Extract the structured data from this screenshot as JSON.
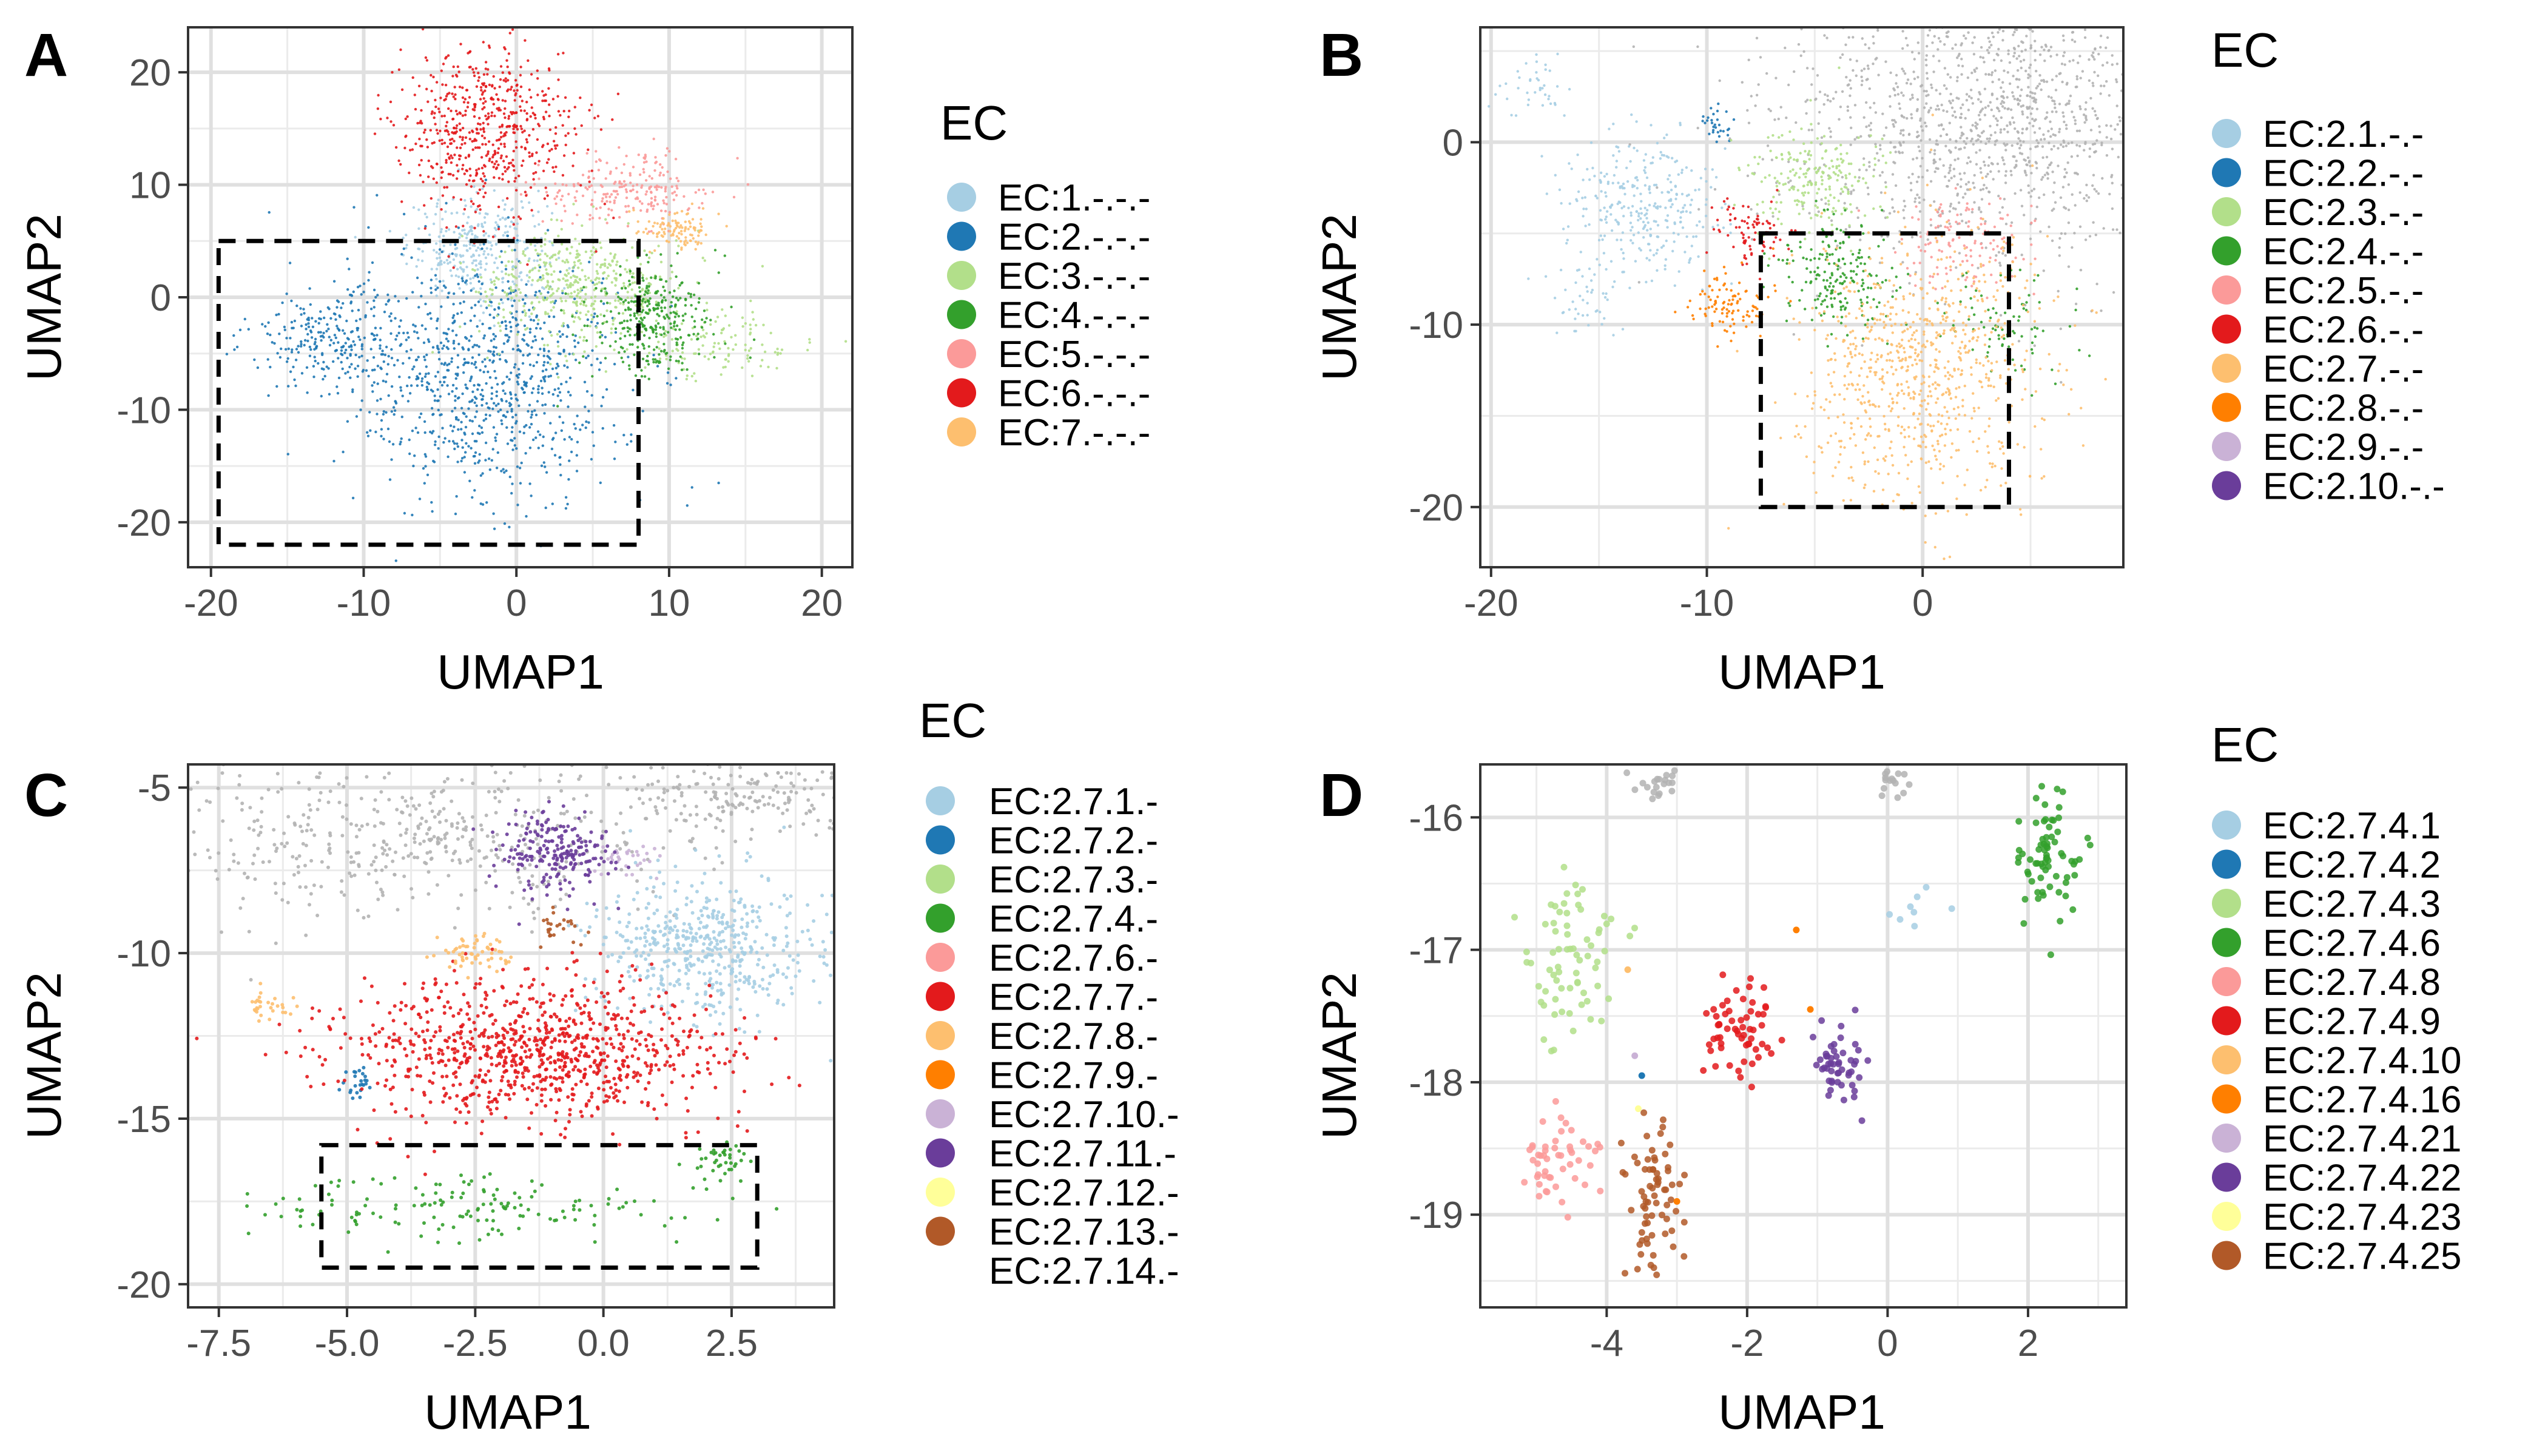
{
  "figure": {
    "panels": [
      {
        "letter": "A",
        "xlabel": "UMAP1",
        "ylabel": "UMAP2",
        "legend_title": "EC",
        "legend": [
          {
            "label": "EC:1.-.-.-",
            "color": "#a6cee3"
          },
          {
            "label": "EC:2.-.-.-",
            "color": "#1f78b4"
          },
          {
            "label": "EC:3.-.-.-",
            "color": "#b2df8a"
          },
          {
            "label": "EC:4.-.-.-",
            "color": "#33a02c"
          },
          {
            "label": "EC:5.-.-.-",
            "color": "#fb9a99"
          },
          {
            "label": "EC:6.-.-.-",
            "color": "#e31a1c"
          },
          {
            "label": "EC:7.-.-.-",
            "color": "#fdbf6f"
          }
        ]
      },
      {
        "letter": "B",
        "xlabel": "UMAP1",
        "ylabel": "UMAP2",
        "legend_title": "EC",
        "legend": [
          {
            "label": "EC:2.1.-.-",
            "color": "#a6cee3"
          },
          {
            "label": "EC:2.2.-.-",
            "color": "#1f78b4"
          },
          {
            "label": "EC:2.3.-.-",
            "color": "#b2df8a"
          },
          {
            "label": "EC:2.4.-.-",
            "color": "#33a02c"
          },
          {
            "label": "EC:2.5.-.-",
            "color": "#fb9a99"
          },
          {
            "label": "EC:2.6.-.-",
            "color": "#e31a1c"
          },
          {
            "label": "EC:2.7.-.-",
            "color": "#fdbf6f"
          },
          {
            "label": "EC:2.8.-.-",
            "color": "#ff7f00"
          },
          {
            "label": "EC:2.9.-.-",
            "color": "#cab2d6"
          },
          {
            "label": "EC:2.10.-.-",
            "color": "#6a3d9a"
          }
        ]
      },
      {
        "letter": "C",
        "xlabel": "UMAP1",
        "ylabel": "UMAP2",
        "legend_title": "EC",
        "legend": [
          {
            "label": "EC:2.7.1.-",
            "color": "#a6cee3"
          },
          {
            "label": "EC:2.7.2.-",
            "color": "#1f78b4"
          },
          {
            "label": "EC:2.7.3.-",
            "color": "#b2df8a"
          },
          {
            "label": "EC:2.7.4.-",
            "color": "#33a02c"
          },
          {
            "label": "EC:2.7.6.-",
            "color": "#fb9a99"
          },
          {
            "label": "EC:2.7.7.-",
            "color": "#e31a1c"
          },
          {
            "label": "EC:2.7.8.-",
            "color": "#fdbf6f"
          },
          {
            "label": "EC:2.7.9.-",
            "color": "#ff7f00"
          },
          {
            "label": "EC:2.7.10.-",
            "color": "#cab2d6"
          },
          {
            "label": "EC:2.7.11.-",
            "color": "#6a3d9a"
          },
          {
            "label": "EC:2.7.12.-",
            "color": "#ffff99"
          },
          {
            "label": "EC:2.7.13.-",
            "color": "#b15928"
          },
          {
            "label": "EC:2.7.14.-",
            "color": ""
          }
        ]
      },
      {
        "letter": "D",
        "xlabel": "UMAP1",
        "ylabel": "UMAP2",
        "legend_title": "EC",
        "legend": [
          {
            "label": "EC:2.7.4.1",
            "color": "#a6cee3"
          },
          {
            "label": "EC:2.7.4.2",
            "color": "#1f78b4"
          },
          {
            "label": "EC:2.7.4.3",
            "color": "#b2df8a"
          },
          {
            "label": "EC:2.7.4.6",
            "color": "#33a02c"
          },
          {
            "label": "EC:2.7.4.8",
            "color": "#fb9a99"
          },
          {
            "label": "EC:2.7.4.9",
            "color": "#e31a1c"
          },
          {
            "label": "EC:2.7.4.10",
            "color": "#fdbf6f"
          },
          {
            "label": "EC:2.7.4.16",
            "color": "#ff7f00"
          },
          {
            "label": "EC:2.7.4.21",
            "color": "#cab2d6"
          },
          {
            "label": "EC:2.7.4.22",
            "color": "#6a3d9a"
          },
          {
            "label": "EC:2.7.4.23",
            "color": "#ffff99"
          },
          {
            "label": "EC:2.7.4.25",
            "color": "#b15928"
          }
        ]
      }
    ]
  },
  "chart_data": [
    {
      "type": "scatter",
      "panel": "A",
      "xlabel": "UMAP1",
      "ylabel": "UMAP2",
      "xlim": [
        -21.5,
        22
      ],
      "ylim": [
        -24,
        24
      ],
      "xticks": [
        -20,
        -10,
        0,
        10,
        20
      ],
      "yticks": [
        -20,
        -10,
        0,
        10,
        20
      ],
      "xtick_labels": [
        "-20",
        "-10",
        "0",
        "10",
        "20"
      ],
      "ytick_labels": [
        "-20",
        "-10",
        "0",
        "10",
        "20"
      ],
      "grid": true,
      "legend_position": "right",
      "zoom_box": {
        "x": [
          -19.5,
          8
        ],
        "y": [
          -22,
          5
        ]
      },
      "clusters": [
        {
          "label": "EC:1.-.-.-",
          "color": "#a6cee3",
          "cx": -2.5,
          "cy": 4.5,
          "sx": 2.3,
          "sy": 2.3,
          "n": 300
        },
        {
          "label": "EC:2.-.-.-",
          "color": "#1f78b4",
          "cx": -2,
          "cy": -7,
          "sx": 4.5,
          "sy": 5.5,
          "n": 900
        },
        {
          "label": "EC:2.-.-.-",
          "color": "#1f78b4",
          "cx": -12,
          "cy": -3.5,
          "sx": 2.6,
          "sy": 2,
          "n": 250
        },
        {
          "label": "EC:3.-.-.-",
          "color": "#b2df8a",
          "cx": 4,
          "cy": 1,
          "sx": 3.2,
          "sy": 2.5,
          "n": 450
        },
        {
          "label": "EC:3.-.-.-",
          "color": "#b2df8a",
          "cx": 13,
          "cy": -4,
          "sx": 2.5,
          "sy": 1.5,
          "n": 120
        },
        {
          "label": "EC:4.-.-.-",
          "color": "#33a02c",
          "cx": 9,
          "cy": -2,
          "sx": 2,
          "sy": 2.5,
          "n": 320
        },
        {
          "label": "EC:5.-.-.-",
          "color": "#fb9a99",
          "cx": 7,
          "cy": 9.5,
          "sx": 3,
          "sy": 1.6,
          "n": 220
        },
        {
          "label": "EC:6.-.-.-",
          "color": "#e31a1c",
          "cx": -2,
          "cy": 15,
          "sx": 3,
          "sy": 3.5,
          "n": 600
        },
        {
          "label": "EC:7.-.-.-",
          "color": "#fdbf6f",
          "cx": 10.5,
          "cy": 6,
          "sx": 1.4,
          "sy": 0.9,
          "n": 110
        }
      ]
    },
    {
      "type": "scatter",
      "panel": "B",
      "xlabel": "UMAP1",
      "ylabel": "UMAP2",
      "xlim": [
        -20.5,
        9.3
      ],
      "ylim": [
        -23.3,
        6.3
      ],
      "xticks": [
        -20,
        -10,
        0
      ],
      "yticks": [
        -20,
        -10,
        0
      ],
      "xtick_labels": [
        "-20",
        "-10",
        "0"
      ],
      "ytick_labels": [
        "-20",
        "-10",
        "0"
      ],
      "grid": true,
      "legend_position": "right",
      "zoom_box": {
        "x": [
          -7.5,
          4
        ],
        "y": [
          -20,
          -5
        ]
      },
      "clusters": [
        {
          "label": "other",
          "color": "#b3b3b3",
          "cx": 3,
          "cy": 1.5,
          "sx": 5,
          "sy": 4,
          "n": 1400
        },
        {
          "label": "EC:2.1.-.-",
          "color": "#a6cee3",
          "cx": -13,
          "cy": -3.5,
          "sx": 1.8,
          "sy": 1.8,
          "n": 300
        },
        {
          "label": "EC:2.1.-.-",
          "color": "#a6cee3",
          "cx": -18,
          "cy": 3,
          "sx": 0.8,
          "sy": 1,
          "n": 40
        },
        {
          "label": "EC:2.1.-.-",
          "color": "#a6cee3",
          "cx": -15.5,
          "cy": -8,
          "sx": 1,
          "sy": 1.2,
          "n": 50
        },
        {
          "label": "EC:2.2.-.-",
          "color": "#1f78b4",
          "cx": -9.5,
          "cy": 1.2,
          "sx": 0.4,
          "sy": 0.5,
          "n": 30
        },
        {
          "label": "EC:2.3.-.-",
          "color": "#b2df8a",
          "cx": -5,
          "cy": -2,
          "sx": 1.5,
          "sy": 1.5,
          "n": 220
        },
        {
          "label": "EC:2.4.-.-",
          "color": "#33a02c",
          "cx": -4,
          "cy": -7.5,
          "sx": 1.3,
          "sy": 1.5,
          "n": 200
        },
        {
          "label": "EC:2.4.-.-",
          "color": "#33a02c",
          "cx": 4,
          "cy": -10,
          "sx": 1.5,
          "sy": 1.5,
          "n": 80
        },
        {
          "label": "EC:2.5.-.-",
          "color": "#fb9a99",
          "cx": 1.8,
          "cy": -5.5,
          "sx": 1.5,
          "sy": 1.3,
          "n": 130
        },
        {
          "label": "EC:2.6.-.-",
          "color": "#e31a1c",
          "cx": -8,
          "cy": -5,
          "sx": 0.8,
          "sy": 0.9,
          "n": 80
        },
        {
          "label": "EC:2.7.-.-",
          "color": "#fdbf6f",
          "cx": 0,
          "cy": -12.5,
          "sx": 2.8,
          "sy": 3.5,
          "n": 800
        },
        {
          "label": "EC:2.8.-.-",
          "color": "#ff7f00",
          "cx": -9,
          "cy": -9,
          "sx": 1,
          "sy": 0.9,
          "n": 100
        }
      ]
    },
    {
      "type": "scatter",
      "panel": "C",
      "xlabel": "UMAP1",
      "ylabel": "UMAP2",
      "xlim": [
        -8.1,
        4.5
      ],
      "ylim": [
        -20.7,
        -4.3
      ],
      "xticks": [
        -7.5,
        -5.0,
        -2.5,
        0.0,
        2.5
      ],
      "yticks": [
        -20,
        -15,
        -10,
        -5
      ],
      "xtick_labels": [
        "-7.5",
        "-5.0",
        "-2.5",
        "0.0",
        "2.5"
      ],
      "ytick_labels": [
        "-20",
        "-15",
        "-10",
        "-5"
      ],
      "grid": true,
      "legend_position": "right",
      "zoom_box": {
        "x": [
          -5.5,
          3
        ],
        "y": [
          -19.5,
          -15.8
        ]
      },
      "clusters": [
        {
          "label": "other",
          "color": "#b3b3b3",
          "cx": -4,
          "cy": -6.5,
          "sx": 2.8,
          "sy": 1.3,
          "n": 500
        },
        {
          "label": "other",
          "color": "#b3b3b3",
          "cx": 2.5,
          "cy": -5.2,
          "sx": 1.5,
          "sy": 0.6,
          "n": 200
        },
        {
          "label": "EC:2.7.1.-",
          "color": "#a6cee3",
          "cx": 2,
          "cy": -9.8,
          "sx": 1.1,
          "sy": 1.1,
          "n": 500
        },
        {
          "label": "EC:2.7.2.-",
          "color": "#1f78b4",
          "cx": -4.8,
          "cy": -13.9,
          "sx": 0.15,
          "sy": 0.3,
          "n": 25
        },
        {
          "label": "EC:2.7.4.-",
          "color": "#33a02c",
          "cx": -2.5,
          "cy": -17.7,
          "sx": 2.2,
          "sy": 0.5,
          "n": 150
        },
        {
          "label": "EC:2.7.4.-",
          "color": "#33a02c",
          "cx": 2.3,
          "cy": -16.3,
          "sx": 0.3,
          "sy": 0.3,
          "n": 40
        },
        {
          "label": "EC:2.7.7.-",
          "color": "#e31a1c",
          "cx": -1.3,
          "cy": -13,
          "sx": 1.8,
          "sy": 1.1,
          "n": 900
        },
        {
          "label": "EC:2.7.8.-",
          "color": "#fdbf6f",
          "cx": -2.5,
          "cy": -10,
          "sx": 0.4,
          "sy": 0.35,
          "n": 60
        },
        {
          "label": "EC:2.7.8.-",
          "color": "#fdbf6f",
          "cx": -6.5,
          "cy": -11.6,
          "sx": 0.3,
          "sy": 0.2,
          "n": 30
        },
        {
          "label": "EC:2.7.10.-",
          "color": "#cab2d6",
          "cx": 0.5,
          "cy": -7.1,
          "sx": 0.35,
          "sy": 0.3,
          "n": 30
        },
        {
          "label": "EC:2.7.11.-",
          "color": "#6a3d9a",
          "cx": -0.9,
          "cy": -7,
          "sx": 0.55,
          "sy": 0.6,
          "n": 220
        },
        {
          "label": "EC:2.7.13.-",
          "color": "#b15928",
          "cx": -0.9,
          "cy": -9.3,
          "sx": 0.25,
          "sy": 0.25,
          "n": 25
        }
      ]
    },
    {
      "type": "scatter",
      "panel": "D",
      "xlabel": "UMAP1",
      "ylabel": "UMAP2",
      "xlim": [
        -5.8,
        3.4
      ],
      "ylim": [
        -19.7,
        -15.6
      ],
      "xticks": [
        -4,
        -2,
        0,
        2
      ],
      "yticks": [
        -19,
        -18,
        -17,
        -16
      ],
      "xtick_labels": [
        "-4",
        "-2",
        "0",
        "2"
      ],
      "ytick_labels": [
        "-19",
        "-18",
        "-17",
        "-16"
      ],
      "grid": true,
      "legend_position": "right",
      "clusters": [
        {
          "label": "other",
          "color": "#b3b3b3",
          "cx": -3.3,
          "cy": -15.75,
          "sx": 0.25,
          "sy": 0.06,
          "n": 20
        },
        {
          "label": "other",
          "color": "#b3b3b3",
          "cx": 0,
          "cy": -15.75,
          "sx": 0.12,
          "sy": 0.06,
          "n": 15
        },
        {
          "label": "EC:2.7.4.1",
          "color": "#a6cee3",
          "cx": 0.3,
          "cy": -16.7,
          "sx": 0.22,
          "sy": 0.12,
          "n": 8
        },
        {
          "label": "EC:2.7.4.3",
          "color": "#b2df8a",
          "cx": -4.5,
          "cy": -17.1,
          "sx": 0.35,
          "sy": 0.35,
          "n": 70
        },
        {
          "label": "EC:2.7.4.6",
          "color": "#33a02c",
          "cx": 2.3,
          "cy": -16.3,
          "sx": 0.22,
          "sy": 0.22,
          "n": 70
        },
        {
          "label": "EC:2.7.4.8",
          "color": "#fb9a99",
          "cx": -4.7,
          "cy": -18.6,
          "sx": 0.25,
          "sy": 0.18,
          "n": 50
        },
        {
          "label": "EC:2.7.4.9",
          "color": "#e31a1c",
          "cx": -2.1,
          "cy": -17.6,
          "sx": 0.28,
          "sy": 0.2,
          "n": 60
        },
        {
          "label": "EC:2.7.4.22",
          "color": "#6a3d9a",
          "cx": -0.7,
          "cy": -17.9,
          "sx": 0.18,
          "sy": 0.2,
          "n": 50
        },
        {
          "label": "EC:2.7.4.25",
          "color": "#b15928",
          "cx": -3.3,
          "cy": -18.9,
          "sx": 0.2,
          "sy": 0.28,
          "n": 70
        }
      ],
      "points": [
        {
          "label": "EC:2.7.4.16",
          "color": "#ff7f00",
          "x": -1.3,
          "y": -16.85
        },
        {
          "label": "EC:2.7.4.16",
          "color": "#ff7f00",
          "x": -1.1,
          "y": -17.45
        },
        {
          "label": "EC:2.7.4.16",
          "color": "#ff7f00",
          "x": -3.0,
          "y": -18.9
        },
        {
          "label": "EC:2.7.4.10",
          "color": "#fdbf6f",
          "x": -3.7,
          "y": -17.15
        },
        {
          "label": "EC:2.7.4.2",
          "color": "#1f78b4",
          "x": -3.5,
          "y": -17.95
        },
        {
          "label": "EC:2.7.4.23",
          "color": "#ffff99",
          "x": -3.55,
          "y": -18.2
        },
        {
          "label": "EC:2.7.4.21",
          "color": "#cab2d6",
          "x": -3.6,
          "y": -17.8
        }
      ]
    }
  ]
}
